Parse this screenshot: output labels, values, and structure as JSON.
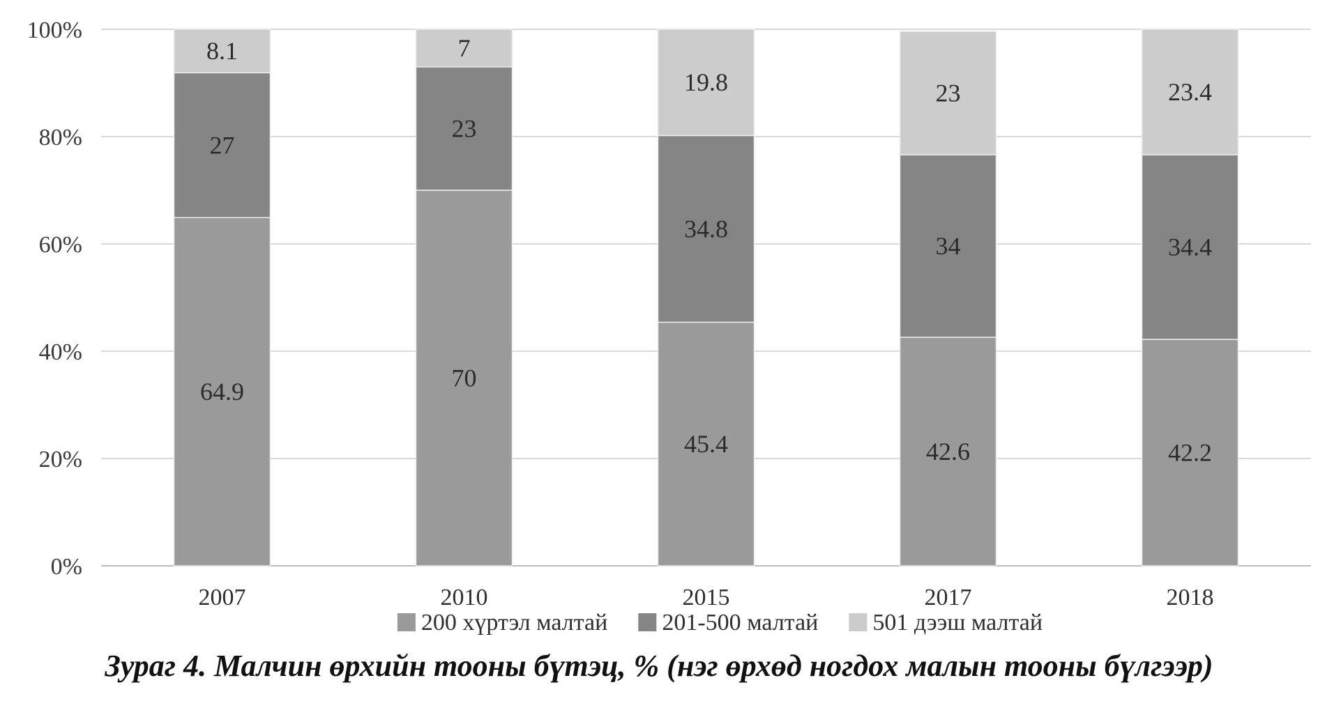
{
  "chart_data": {
    "type": "bar",
    "stacked": true,
    "percent": true,
    "categories": [
      "2007",
      "2010",
      "2015",
      "2017",
      "2018"
    ],
    "series": [
      {
        "name": "200 хүртэл малтай",
        "values": [
          64.9,
          70,
          45.4,
          42.6,
          42.2
        ],
        "color": "#9a9a9a"
      },
      {
        "name": "201-500 малтай",
        "values": [
          27,
          23,
          34.8,
          34,
          34.4
        ],
        "color": "#858585"
      },
      {
        "name": "501 дээш малтай",
        "values": [
          8.1,
          7,
          19.8,
          23,
          23.4
        ],
        "color": "#cccccc"
      }
    ],
    "ylim": [
      0,
      100
    ],
    "yticks": [
      "0%",
      "20%",
      "40%",
      "60%",
      "80%",
      "100%"
    ],
    "grid": true,
    "legend_position": "bottom",
    "data_labels": true
  },
  "caption": "Зураг 4.  Малчин өрхийн тооны бүтэц, % (нэг өрхөд ногдох малын тооны бүлгээр)"
}
